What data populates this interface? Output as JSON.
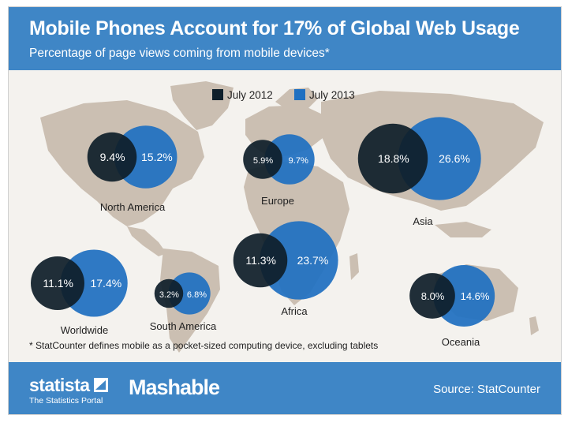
{
  "title": "Mobile Phones Account for 17% of Global Web Usage",
  "subtitle": "Percentage of page views coming from mobile devices*",
  "footnote": "* StatCounter defines mobile as a pocket-sized computing device, excluding tablets",
  "footer": {
    "brand1": "statista",
    "brand1_sub": "The Statistics Portal",
    "brand2": "Mashable",
    "source": "Source: StatCounter"
  },
  "colors": {
    "header": "#3f86c6",
    "july_2012": "#0f1f2a",
    "july_2013": "#1f70c1",
    "map_land": "#cbbfb2",
    "background": "#f4f2ee"
  },
  "chart_data": {
    "type": "bubble",
    "title": "Mobile Phones Account for 17% of Global Web Usage",
    "subtitle": "Percentage of page views coming from mobile devices*",
    "unit": "%",
    "legend": {
      "position": "top-center",
      "entries": [
        "July 2012",
        "July 2013"
      ]
    },
    "series": [
      {
        "name": "July 2012",
        "values": [
          9.4,
          5.9,
          18.8,
          11.3,
          11.1,
          3.2,
          8.0
        ]
      },
      {
        "name": "July 2013",
        "values": [
          15.2,
          9.7,
          26.6,
          23.7,
          17.4,
          6.8,
          14.6
        ]
      }
    ],
    "categories": [
      "North America",
      "Europe",
      "Asia",
      "Africa",
      "Worldwide",
      "South America",
      "Oceania"
    ],
    "labels_2012": [
      "9.4%",
      "5.9%",
      "18.8%",
      "11.3%",
      "11.1%",
      "3.2%",
      "8.0%"
    ],
    "labels_2013": [
      "15.2%",
      "9.7%",
      "26.6%",
      "23.7%",
      "17.4%",
      "6.8%",
      "14.6%"
    ]
  }
}
